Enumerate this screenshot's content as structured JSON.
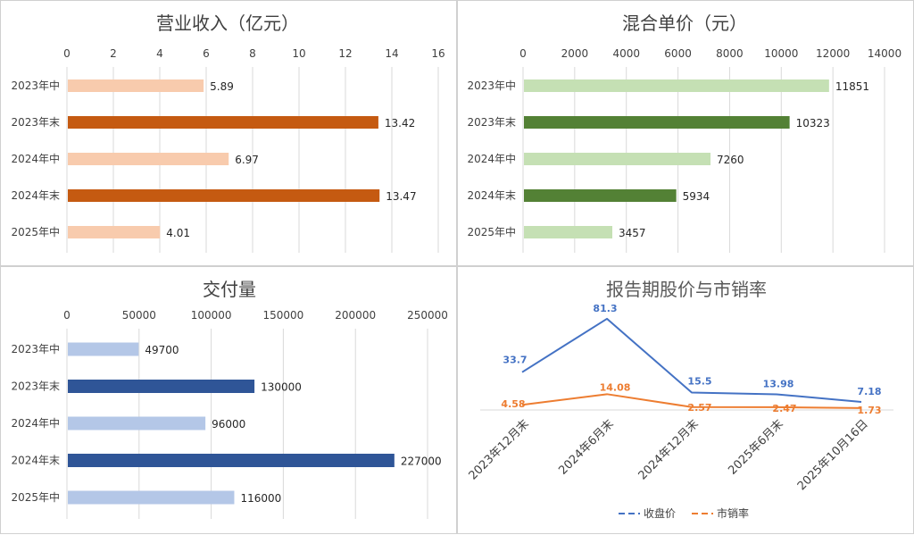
{
  "chart_data": [
    {
      "type": "bar",
      "orientation": "horizontal",
      "title": "营业收入（亿元）",
      "categories": [
        "2023年中",
        "2023年末",
        "2024年中",
        "2024年末",
        "2025年中"
      ],
      "values": [
        5.89,
        13.42,
        6.97,
        13.47,
        4.01
      ],
      "value_labels": [
        "5.89",
        "13.42",
        "6.97",
        "13.47",
        "4.01"
      ],
      "xlim": [
        0,
        16
      ],
      "ticks": [
        "0",
        "2",
        "4",
        "6",
        "8",
        "10",
        "12",
        "14",
        "16"
      ],
      "colors": [
        "#f8cbad",
        "#c55a11",
        "#f8cbad",
        "#c55a11",
        "#f8cbad"
      ],
      "grid": true
    },
    {
      "type": "bar",
      "orientation": "horizontal",
      "title": "混合单价（元）",
      "categories": [
        "2023年中",
        "2023年末",
        "2024年中",
        "2024年末",
        "2025年中"
      ],
      "values": [
        11851,
        10323,
        7260,
        5934,
        3457
      ],
      "value_labels": [
        "11851",
        "10323",
        "7260",
        "5934",
        "3457"
      ],
      "xlim": [
        0,
        14000
      ],
      "ticks": [
        "0",
        "2000",
        "4000",
        "6000",
        "8000",
        "10000",
        "12000",
        "14000"
      ],
      "colors": [
        "#c5e0b4",
        "#538135",
        "#c5e0b4",
        "#538135",
        "#c5e0b4"
      ],
      "grid": true
    },
    {
      "type": "bar",
      "orientation": "horizontal",
      "title": "交付量",
      "categories": [
        "2023年中",
        "2023年末",
        "2024年中",
        "2024年末",
        "2025年中"
      ],
      "values": [
        49700,
        130000,
        96000,
        227000,
        116000
      ],
      "value_labels": [
        "49700",
        "130000",
        "96000",
        "227000",
        "116000"
      ],
      "xlim": [
        0,
        250000
      ],
      "ticks": [
        "0",
        "50000",
        "100000",
        "150000",
        "200000",
        "250000"
      ],
      "colors": [
        "#b4c7e7",
        "#2f5597",
        "#b4c7e7",
        "#2f5597",
        "#b4c7e7"
      ],
      "grid": true
    },
    {
      "type": "line",
      "title": "报告期股价与市销率",
      "categories": [
        "2023年12月末",
        "2024年6月末",
        "2024年12月末",
        "2025年6月末",
        "2025年10月16日"
      ],
      "series": [
        {
          "name": "收盘价",
          "values": [
            33.7,
            81.3,
            15.5,
            13.98,
            7.18
          ],
          "labels": [
            "33.7",
            "81.3",
            "15.5",
            "13.98",
            "7.18"
          ],
          "color": "#4472c4"
        },
        {
          "name": "市销率",
          "values": [
            4.58,
            14.08,
            2.57,
            2.47,
            1.73
          ],
          "labels": [
            "4.58",
            "14.08",
            "2.57",
            "2.47",
            "1.73"
          ],
          "color": "#ed7d31"
        }
      ],
      "ylim": [
        0,
        90
      ],
      "grid": false,
      "legend": "bottom"
    }
  ]
}
